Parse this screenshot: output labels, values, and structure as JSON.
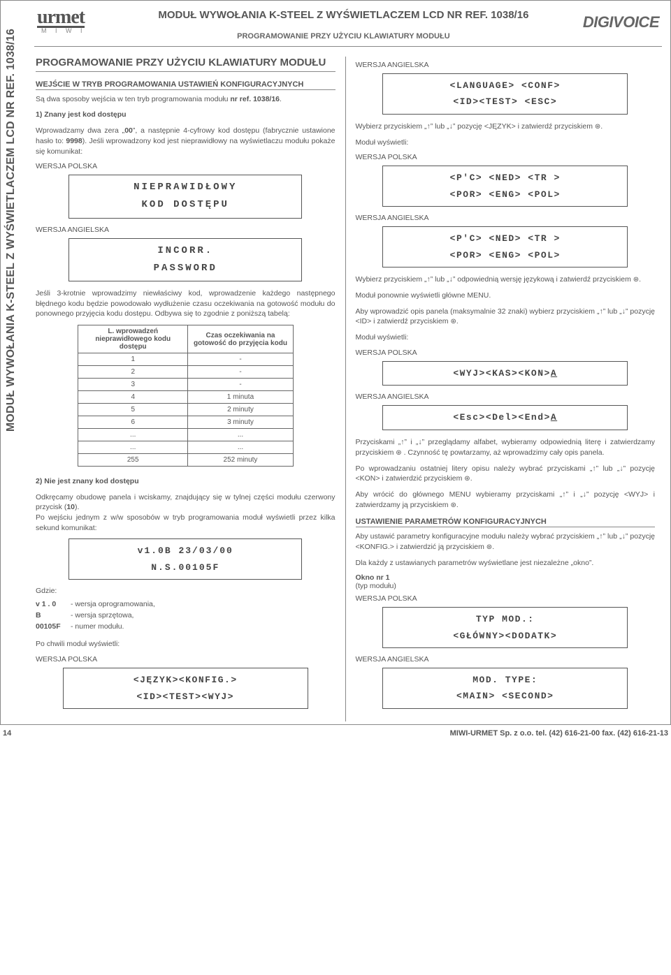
{
  "vertical_label": "MODUŁ WYWOŁANIA K-STEEL Z WYŚWIETLACZEM LCD    NR REF. 1038/16",
  "logo": {
    "main": "urmet",
    "sub": "M I W I",
    "right": "DIGIVOICE"
  },
  "header": {
    "title": "MODUŁ WYWOŁANIA K-STEEL Z WYŚWIETLACZEM LCD NR REF. 1038/16",
    "subtitle": "PROGRAMOWANIE PRZY UŻYCIU KLAWIATURY MODUŁU"
  },
  "left": {
    "h2": "PROGRAMOWANIE PRZY UŻYCIU KLAWIATURY MODUŁU",
    "h3a": "WEJŚCIE W TRYB PROGRAMOWANIA USTAWIEŃ KONFIGURACYJNYCH",
    "p1": "Są dwa sposoby wejścia w ten tryb programowania modułu nr ref. 1038/16.",
    "h3b": "1)  Znany jest kod dostępu",
    "p2": "Wprowadzamy dwa zera „00”, a następnie 4-cyfrowy kod dostępu (fabrycznie ustawione hasło to: 9998). Jeśli wprowadzony kod jest nieprawidłowy na wyświetlaczu modułu pokaże się komunikat:",
    "lbl_pl": "WERSJA POLSKA",
    "lcd1_l1": "NIEPRAWIDŁOWY",
    "lcd1_l2": "KOD  DOSTĘPU",
    "lbl_en": "WERSJA ANGIELSKA",
    "lcd2_l1": "INCORR.",
    "lcd2_l2": "PASSWORD",
    "p3": "Jeśli 3-krotnie wprowadzimy niewłaściwy kod, wprowadzenie każdego następnego błędnego kodu będzie powodowało wydłużenie czasu oczekiwania na gotowość modułu do ponownego przyjęcia kodu dostępu. Odbywa się to zgodnie z poniższą tabelą:",
    "table": {
      "h1": "L. wprowadzeń nieprawidłowego kodu dostępu",
      "h2": "Czas oczekiwania na gotowość do przyjęcia kodu",
      "rows": [
        [
          "1",
          "-"
        ],
        [
          "2",
          "-"
        ],
        [
          "3",
          "-"
        ],
        [
          "4",
          "1 minuta"
        ],
        [
          "5",
          "2 minuty"
        ],
        [
          "6",
          "3 minuty"
        ],
        [
          "...",
          "..."
        ],
        [
          "...",
          "..."
        ],
        [
          "255",
          "252 minuty"
        ]
      ]
    },
    "h3c": "2)  Nie jest znany kod dostępu",
    "p4": "Odkręcamy obudowę panela i wciskamy, znajdujący się w tylnej części modułu czerwony przycisk (10).",
    "p5": "Po wejściu jednym z w/w sposobów w tryb programowania moduł wyświetli przez kilka sekund komunikat:",
    "lcd3_l1": "v1.0B  23/03/00",
    "lcd3_l2": "N.S.00105F",
    "p6": "Gdzie:",
    "def1k": "v 1 . 0",
    "def1v": "- wersja oprogramowania,",
    "def2k": "B",
    "def2v": "- wersja sprzętowa,",
    "def3k": "00105F",
    "def3v": "- numer modułu.",
    "p7": "Po chwili moduł wyświetli:",
    "lcd4_l1": "<JĘZYK><KONFIG.>",
    "lcd4_l2": "<ID><TEST><WYJ>"
  },
  "right": {
    "lcd5_l1": "<LANGUAGE> <CONF>",
    "lcd5_l2": "<ID><TEST> <ESC>",
    "p1a": "Wybierz przyciskiem „↑” lub „↓” pozycję <JĘZYK> i zatwierdź przyciskiem ",
    "p1b": ".",
    "p_mod": "Moduł wyświetli:",
    "lcd6_l1": "<P'C>  <NED>  <TR  >",
    "lcd6_l2": "<POR>  <ENG>  <POL>",
    "lcd7_l1": "<P'C>  <NED>  <TR  >",
    "lcd7_l2": "<POR>  <ENG>  <POL>",
    "p2a": "Wybierz przyciskiem „↑” lub „↓” odpowiednią wersję językową i zatwierdź przyciskiem ",
    "p2b": ".",
    "p3": "Moduł ponownie wyświetli główne MENU.",
    "p4a": "Aby wprowadzić opis panela (maksymalnie 32 znaki) wybierz przyciskiem „↑” lub „↓” pozycję <ID> i zatwierdź przyciskiem ",
    "p4b": ".",
    "lcd8": "<WYJ><KAS><KON>",
    "lcd8_tail": "A",
    "lcd9": "<Esc><Del><End>",
    "lcd9_tail": "A",
    "p5a": "Przyciskami „↑” i „↓” przeglądamy alfabet, wybieramy odpowiednią literę i zatwierdzamy przyciskiem ",
    "p5b": " . Czynność tę powtarzamy, aż wprowadzimy cały opis panela.",
    "p6a": "Po wprowadzaniu ostatniej litery opisu należy wybrać przyciskami „↑” lub „↓” pozycję <KON> i zatwierdzić przyciskiem ",
    "p6b": ".",
    "p7a": "Aby wrócić do głównego MENU wybieramy  przyciskami „↑” i „↓” pozycję <WYJ> i zatwierdzamy ją przyciskiem ",
    "p7b": ".",
    "h3": "USTAWIENIE PARAMETRÓW KONFIGURACYJNYCH",
    "p8a": "Aby ustawić parametry konfiguracyjne modułu należy wybrać przyciskiem „↑” lub „↓” pozycję <KONFIG.> i zatwierdzić ją przyciskiem ",
    "p8b": ".",
    "p9": "Dla każdy z ustawianych parametrów wyświetlane jest niezależne „okno”.",
    "okno_t": "Okno nr 1",
    "okno_s": "(typ modułu)",
    "lcd10_l1": "TYP  MOD.:",
    "lcd10_l2": "<GŁÓWNY><DODATK>",
    "lcd11_l1": "MOD.  TYPE:",
    "lcd11_l2": "<MAIN>  <SECOND>"
  },
  "footer": {
    "page": "14",
    "contact": "MIWI-URMET Sp. z o.o.  tel. (42) 616-21-00  fax. (42) 616-21-13"
  },
  "icons": {
    "bell": "⊛"
  }
}
